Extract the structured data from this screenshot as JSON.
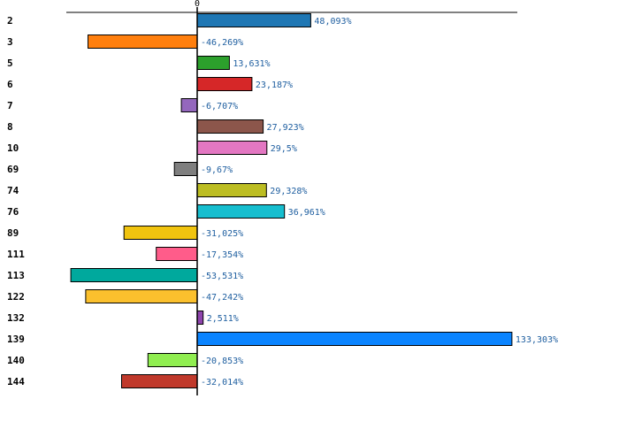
{
  "chart_data": {
    "type": "bar",
    "orientation": "horizontal",
    "title": "",
    "xlabel": "",
    "ylabel": "",
    "grid": false,
    "zero_tick_label": "0",
    "categories": [
      "2",
      "3",
      "5",
      "6",
      "7",
      "8",
      "10",
      "69",
      "74",
      "76",
      "89",
      "111",
      "113",
      "122",
      "132",
      "139",
      "140",
      "144"
    ],
    "values": [
      48.093,
      -46.269,
      13.631,
      23.187,
      -6.707,
      27.923,
      29.5,
      -9.67,
      29.328,
      36.961,
      -31.025,
      -17.354,
      -53.531,
      -47.242,
      2.511,
      133.303,
      -20.853,
      -32.014
    ],
    "value_labels": [
      "48,093%",
      "-46,269%",
      "13,631%",
      "23,187%",
      "-6,707%",
      "27,923%",
      "29,5%",
      "-9,67%",
      "29,328%",
      "36,961%",
      "-31,025%",
      "-17,354%",
      "-53,531%",
      "-47,242%",
      "2,511%",
      "133,303%",
      "-20,853%",
      "-32,014%"
    ],
    "colors": [
      "#1f77b4",
      "#ff7f0e",
      "#2ca02c",
      "#d62728",
      "#9467bd",
      "#8c564b",
      "#e377c2",
      "#7f7f7f",
      "#bcbd22",
      "#17becf",
      "#f1c40f",
      "#ff5c8a",
      "#00a99d",
      "#fbc02d",
      "#8e44ad",
      "#0a84ff",
      "#90ee50",
      "#c0392b"
    ],
    "xlim": [
      -55.8,
      135.5
    ]
  }
}
